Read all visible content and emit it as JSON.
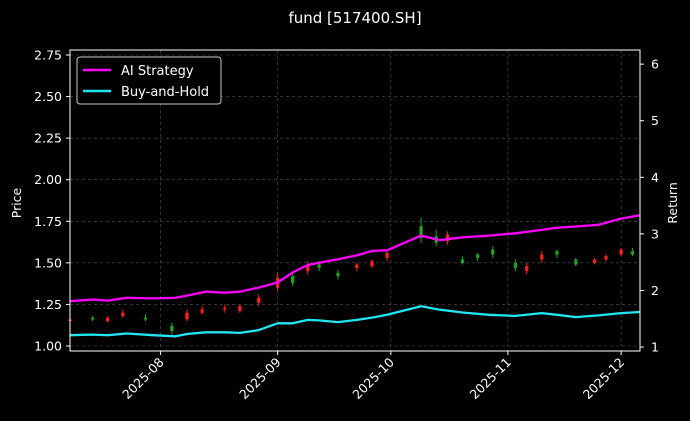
{
  "title": "fund [517400.SH]",
  "chart_data": {
    "type": "line",
    "title": "fund [517400.SH]",
    "xlabel": "",
    "ylabel_left": "Price",
    "ylabel_right": "Return",
    "x_range": [
      "2025-07-08",
      "2025-12-06"
    ],
    "ylim_left": [
      0.97,
      2.78
    ],
    "ylim_right": [
      0.93,
      6.25
    ],
    "x_ticks": [
      "2025-08",
      "2025-09",
      "2025-10",
      "2025-11",
      "2025-12"
    ],
    "y_ticks_left": [
      "1.00",
      "1.25",
      "1.50",
      "1.75",
      "2.00",
      "2.25",
      "2.50",
      "2.75"
    ],
    "y_ticks_right": [
      "1",
      "2",
      "3",
      "4",
      "5",
      "6"
    ],
    "grid": true,
    "legend_position": "top-left",
    "colors": {
      "background": "#000000",
      "ai_strategy": "#ff00ff",
      "buy_and_hold": "#22e5f2",
      "candle_up": "#ff2020",
      "candle_down": "#1fa81f",
      "grid": "#555555",
      "text": "#ffffff"
    },
    "series": [
      {
        "name": "AI Strategy",
        "axis": "right",
        "points": [
          [
            "2025-07-08",
            1.81
          ],
          [
            "2025-07-14",
            1.84
          ],
          [
            "2025-07-18",
            1.82
          ],
          [
            "2025-07-23",
            1.87
          ],
          [
            "2025-07-30",
            1.86
          ],
          [
            "2025-08-05",
            1.87
          ],
          [
            "2025-08-08",
            1.91
          ],
          [
            "2025-08-13",
            1.98
          ],
          [
            "2025-08-18",
            1.96
          ],
          [
            "2025-08-22",
            1.98
          ],
          [
            "2025-08-27",
            2.05
          ],
          [
            "2025-09-01",
            2.14
          ],
          [
            "2025-09-05",
            2.32
          ],
          [
            "2025-09-09",
            2.45
          ],
          [
            "2025-09-12",
            2.49
          ],
          [
            "2025-09-17",
            2.55
          ],
          [
            "2025-09-22",
            2.62
          ],
          [
            "2025-09-26",
            2.7
          ],
          [
            "2025-09-30",
            2.71
          ],
          [
            "2025-10-09",
            2.97
          ],
          [
            "2025-10-14",
            2.89
          ],
          [
            "2025-10-20",
            2.94
          ],
          [
            "2025-10-27",
            2.97
          ],
          [
            "2025-11-03",
            3.01
          ],
          [
            "2025-11-10",
            3.07
          ],
          [
            "2025-11-14",
            3.11
          ],
          [
            "2025-11-19",
            3.13
          ],
          [
            "2025-11-25",
            3.16
          ],
          [
            "2025-12-01",
            3.27
          ],
          [
            "2025-12-06",
            3.33
          ]
        ]
      },
      {
        "name": "Buy-and-Hold",
        "axis": "right",
        "points": [
          [
            "2025-07-08",
            1.21
          ],
          [
            "2025-07-14",
            1.22
          ],
          [
            "2025-07-18",
            1.21
          ],
          [
            "2025-07-23",
            1.24
          ],
          [
            "2025-07-30",
            1.21
          ],
          [
            "2025-08-05",
            1.19
          ],
          [
            "2025-08-08",
            1.23
          ],
          [
            "2025-08-13",
            1.26
          ],
          [
            "2025-08-18",
            1.26
          ],
          [
            "2025-08-22",
            1.25
          ],
          [
            "2025-08-27",
            1.3
          ],
          [
            "2025-09-01",
            1.42
          ],
          [
            "2025-09-05",
            1.42
          ],
          [
            "2025-09-09",
            1.48
          ],
          [
            "2025-09-12",
            1.47
          ],
          [
            "2025-09-17",
            1.44
          ],
          [
            "2025-09-22",
            1.48
          ],
          [
            "2025-09-26",
            1.52
          ],
          [
            "2025-09-30",
            1.57
          ],
          [
            "2025-10-09",
            1.72
          ],
          [
            "2025-10-14",
            1.66
          ],
          [
            "2025-10-20",
            1.61
          ],
          [
            "2025-10-27",
            1.57
          ],
          [
            "2025-11-03",
            1.55
          ],
          [
            "2025-11-10",
            1.6
          ],
          [
            "2025-11-14",
            1.57
          ],
          [
            "2025-11-19",
            1.53
          ],
          [
            "2025-11-25",
            1.56
          ],
          [
            "2025-12-01",
            1.6
          ],
          [
            "2025-12-06",
            1.62
          ]
        ]
      }
    ],
    "candles": [
      [
        "2025-07-08",
        1.15,
        1.16,
        1.14,
        1.17
      ],
      [
        "2025-07-14",
        1.17,
        1.16,
        1.15,
        1.18
      ],
      [
        "2025-07-18",
        1.15,
        1.17,
        1.14,
        1.18
      ],
      [
        "2025-07-22",
        1.18,
        1.2,
        1.17,
        1.22
      ],
      [
        "2025-07-28",
        1.17,
        1.16,
        1.15,
        1.19
      ],
      [
        "2025-08-04",
        1.12,
        1.09,
        1.07,
        1.14
      ],
      [
        "2025-08-08",
        1.16,
        1.2,
        1.15,
        1.22
      ],
      [
        "2025-08-12",
        1.2,
        1.22,
        1.19,
        1.24
      ],
      [
        "2025-08-18",
        1.22,
        1.23,
        1.2,
        1.25
      ],
      [
        "2025-08-22",
        1.21,
        1.24,
        1.2,
        1.25
      ],
      [
        "2025-08-27",
        1.26,
        1.29,
        1.24,
        1.31
      ],
      [
        "2025-09-01",
        1.35,
        1.41,
        1.33,
        1.44
      ],
      [
        "2025-09-05",
        1.42,
        1.38,
        1.36,
        1.44
      ],
      [
        "2025-09-09",
        1.45,
        1.49,
        1.43,
        1.51
      ],
      [
        "2025-09-12",
        1.49,
        1.47,
        1.45,
        1.51
      ],
      [
        "2025-09-17",
        1.44,
        1.42,
        1.4,
        1.46
      ],
      [
        "2025-09-22",
        1.47,
        1.49,
        1.45,
        1.5
      ],
      [
        "2025-09-26",
        1.48,
        1.51,
        1.47,
        1.52
      ],
      [
        "2025-09-30",
        1.53,
        1.56,
        1.51,
        1.58
      ],
      [
        "2025-10-09",
        1.72,
        1.65,
        1.62,
        1.77
      ],
      [
        "2025-10-13",
        1.66,
        1.62,
        1.6,
        1.7
      ],
      [
        "2025-10-16",
        1.63,
        1.67,
        1.61,
        1.69
      ],
      [
        "2025-10-20",
        1.52,
        1.5,
        1.49,
        1.54
      ],
      [
        "2025-10-24",
        1.55,
        1.53,
        1.51,
        1.56
      ],
      [
        "2025-10-28",
        1.58,
        1.55,
        1.53,
        1.6
      ],
      [
        "2025-11-03",
        1.5,
        1.47,
        1.45,
        1.52
      ],
      [
        "2025-11-06",
        1.45,
        1.48,
        1.43,
        1.5
      ],
      [
        "2025-11-10",
        1.52,
        1.55,
        1.5,
        1.57
      ],
      [
        "2025-11-14",
        1.57,
        1.55,
        1.53,
        1.58
      ],
      [
        "2025-11-19",
        1.52,
        1.49,
        1.48,
        1.53
      ],
      [
        "2025-11-24",
        1.5,
        1.52,
        1.49,
        1.53
      ],
      [
        "2025-11-27",
        1.52,
        1.54,
        1.51,
        1.55
      ],
      [
        "2025-12-01",
        1.55,
        1.58,
        1.54,
        1.59
      ],
      [
        "2025-12-04",
        1.57,
        1.55,
        1.54,
        1.59
      ]
    ]
  }
}
